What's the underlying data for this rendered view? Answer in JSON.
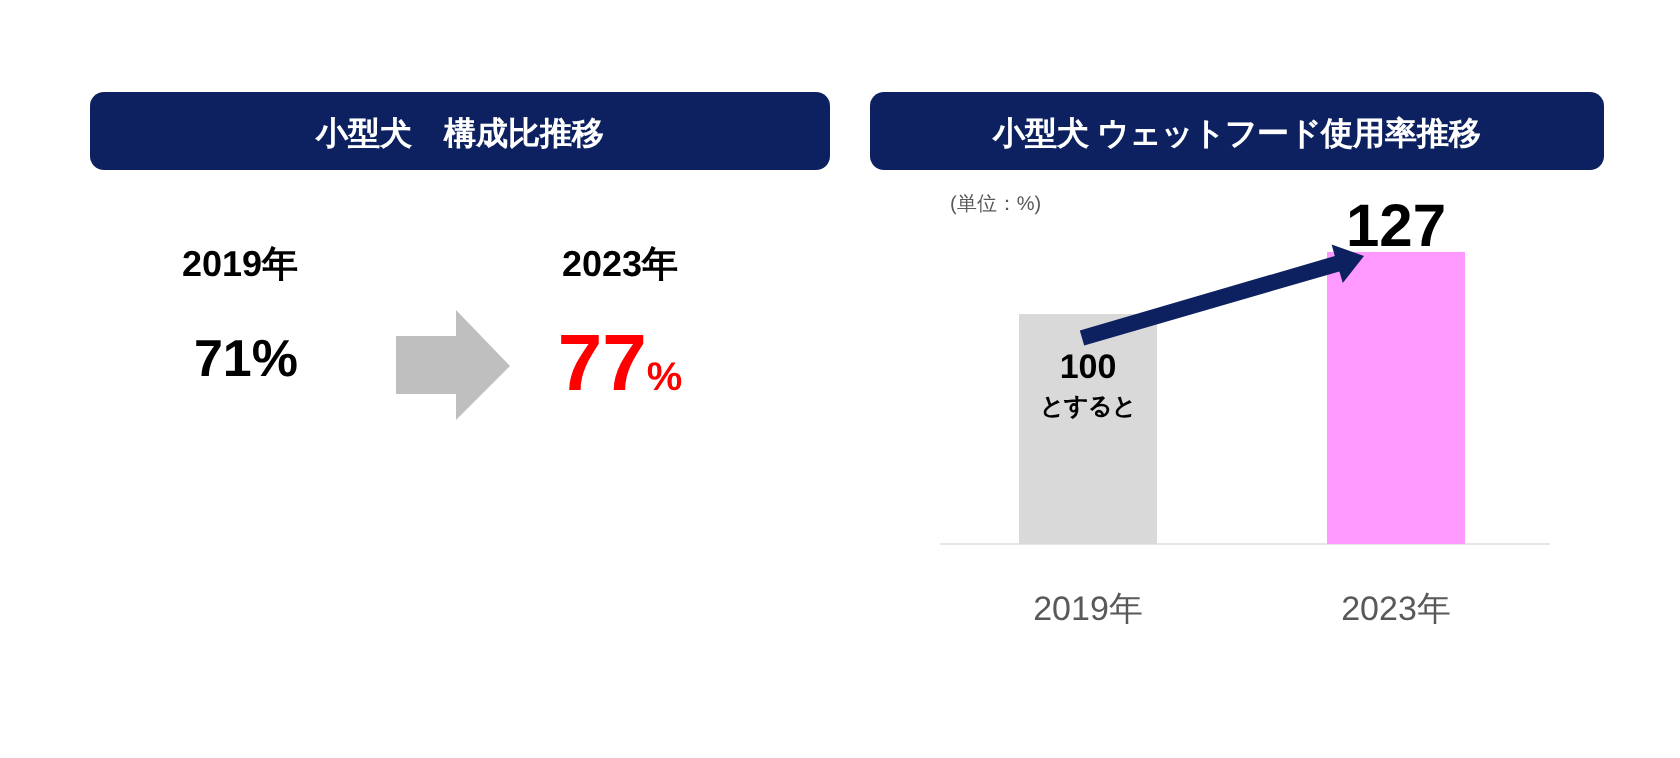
{
  "chart_data": [
    {
      "type": "other",
      "title": "小型犬　構成比推移",
      "annotations": [
        "2019年",
        "71%",
        "2023年",
        "77%"
      ]
    },
    {
      "type": "bar",
      "title": "小型犬 ウェットフード使用率推移",
      "categories": [
        "2019年",
        "2023年"
      ],
      "values": [
        100,
        127
      ],
      "colors": [
        "#d9d9d9",
        "#ff99ff"
      ],
      "value_labels": [
        "100\nとすると",
        "127"
      ],
      "annotations": [
        "(単位：%)"
      ]
    }
  ]
}
